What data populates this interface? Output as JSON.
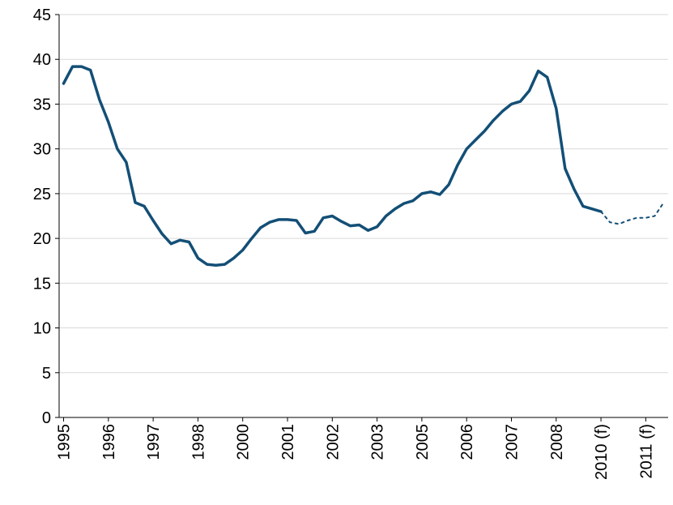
{
  "chart_data": {
    "type": "line",
    "categories": [
      "1995",
      null,
      null,
      null,
      null,
      "1996",
      null,
      null,
      null,
      null,
      "1997",
      null,
      null,
      null,
      null,
      "1998",
      null,
      null,
      null,
      null,
      "2000",
      null,
      null,
      null,
      null,
      "2001",
      null,
      null,
      null,
      null,
      "2002",
      null,
      null,
      null,
      null,
      "2003",
      null,
      null,
      null,
      null,
      "2005",
      null,
      null,
      null,
      null,
      "2006",
      null,
      null,
      null,
      null,
      "2007",
      null,
      null,
      null,
      null,
      "2008",
      null,
      null,
      null,
      null,
      "2010 (f)",
      null,
      null,
      null,
      null,
      "2011 (f)",
      null,
      null
    ],
    "series": [
      {
        "color": "#134f76",
        "style": "solid",
        "values": [
          37.3,
          39.2,
          39.2,
          38.8,
          35.5,
          33,
          30,
          28.5,
          24,
          23.6,
          22,
          20.5,
          19.4,
          19.8,
          19.6,
          17.8,
          17.1,
          17.0,
          17.1,
          17.8,
          18.7,
          20.0,
          21.2,
          21.8,
          22.1,
          22.1,
          22.0,
          20.6,
          20.8,
          22.3,
          22.5,
          21.9,
          21.4,
          21.5,
          20.9,
          21.3,
          22.5,
          23.3,
          23.9,
          24.2,
          25.0,
          25.2,
          24.9,
          26.0,
          28.2,
          30.0,
          31.0,
          32.0,
          33.2,
          34.2,
          35.0,
          35.3,
          36.5,
          38.7,
          38.0,
          34.5,
          27.8,
          25.5,
          23.6,
          23.3,
          23.0,
          null,
          null,
          null,
          null,
          null,
          null,
          null
        ]
      },
      {
        "color": "#134f76",
        "style": "dotted",
        "values": [
          null,
          null,
          null,
          null,
          null,
          null,
          null,
          null,
          null,
          null,
          null,
          null,
          null,
          null,
          null,
          null,
          null,
          null,
          null,
          null,
          null,
          null,
          null,
          null,
          null,
          null,
          null,
          null,
          null,
          null,
          null,
          null,
          null,
          null,
          null,
          null,
          null,
          null,
          null,
          null,
          null,
          null,
          null,
          null,
          null,
          null,
          null,
          null,
          null,
          null,
          null,
          null,
          null,
          null,
          null,
          null,
          null,
          null,
          null,
          null,
          23.0,
          21.8,
          21.6,
          22.0,
          22.3,
          22.3,
          22.5,
          24.0
        ]
      }
    ],
    "ylim": [
      0,
      45
    ],
    "yticks": [
      0,
      5,
      10,
      15,
      20,
      25,
      30,
      35,
      40,
      45
    ],
    "grid": true
  }
}
